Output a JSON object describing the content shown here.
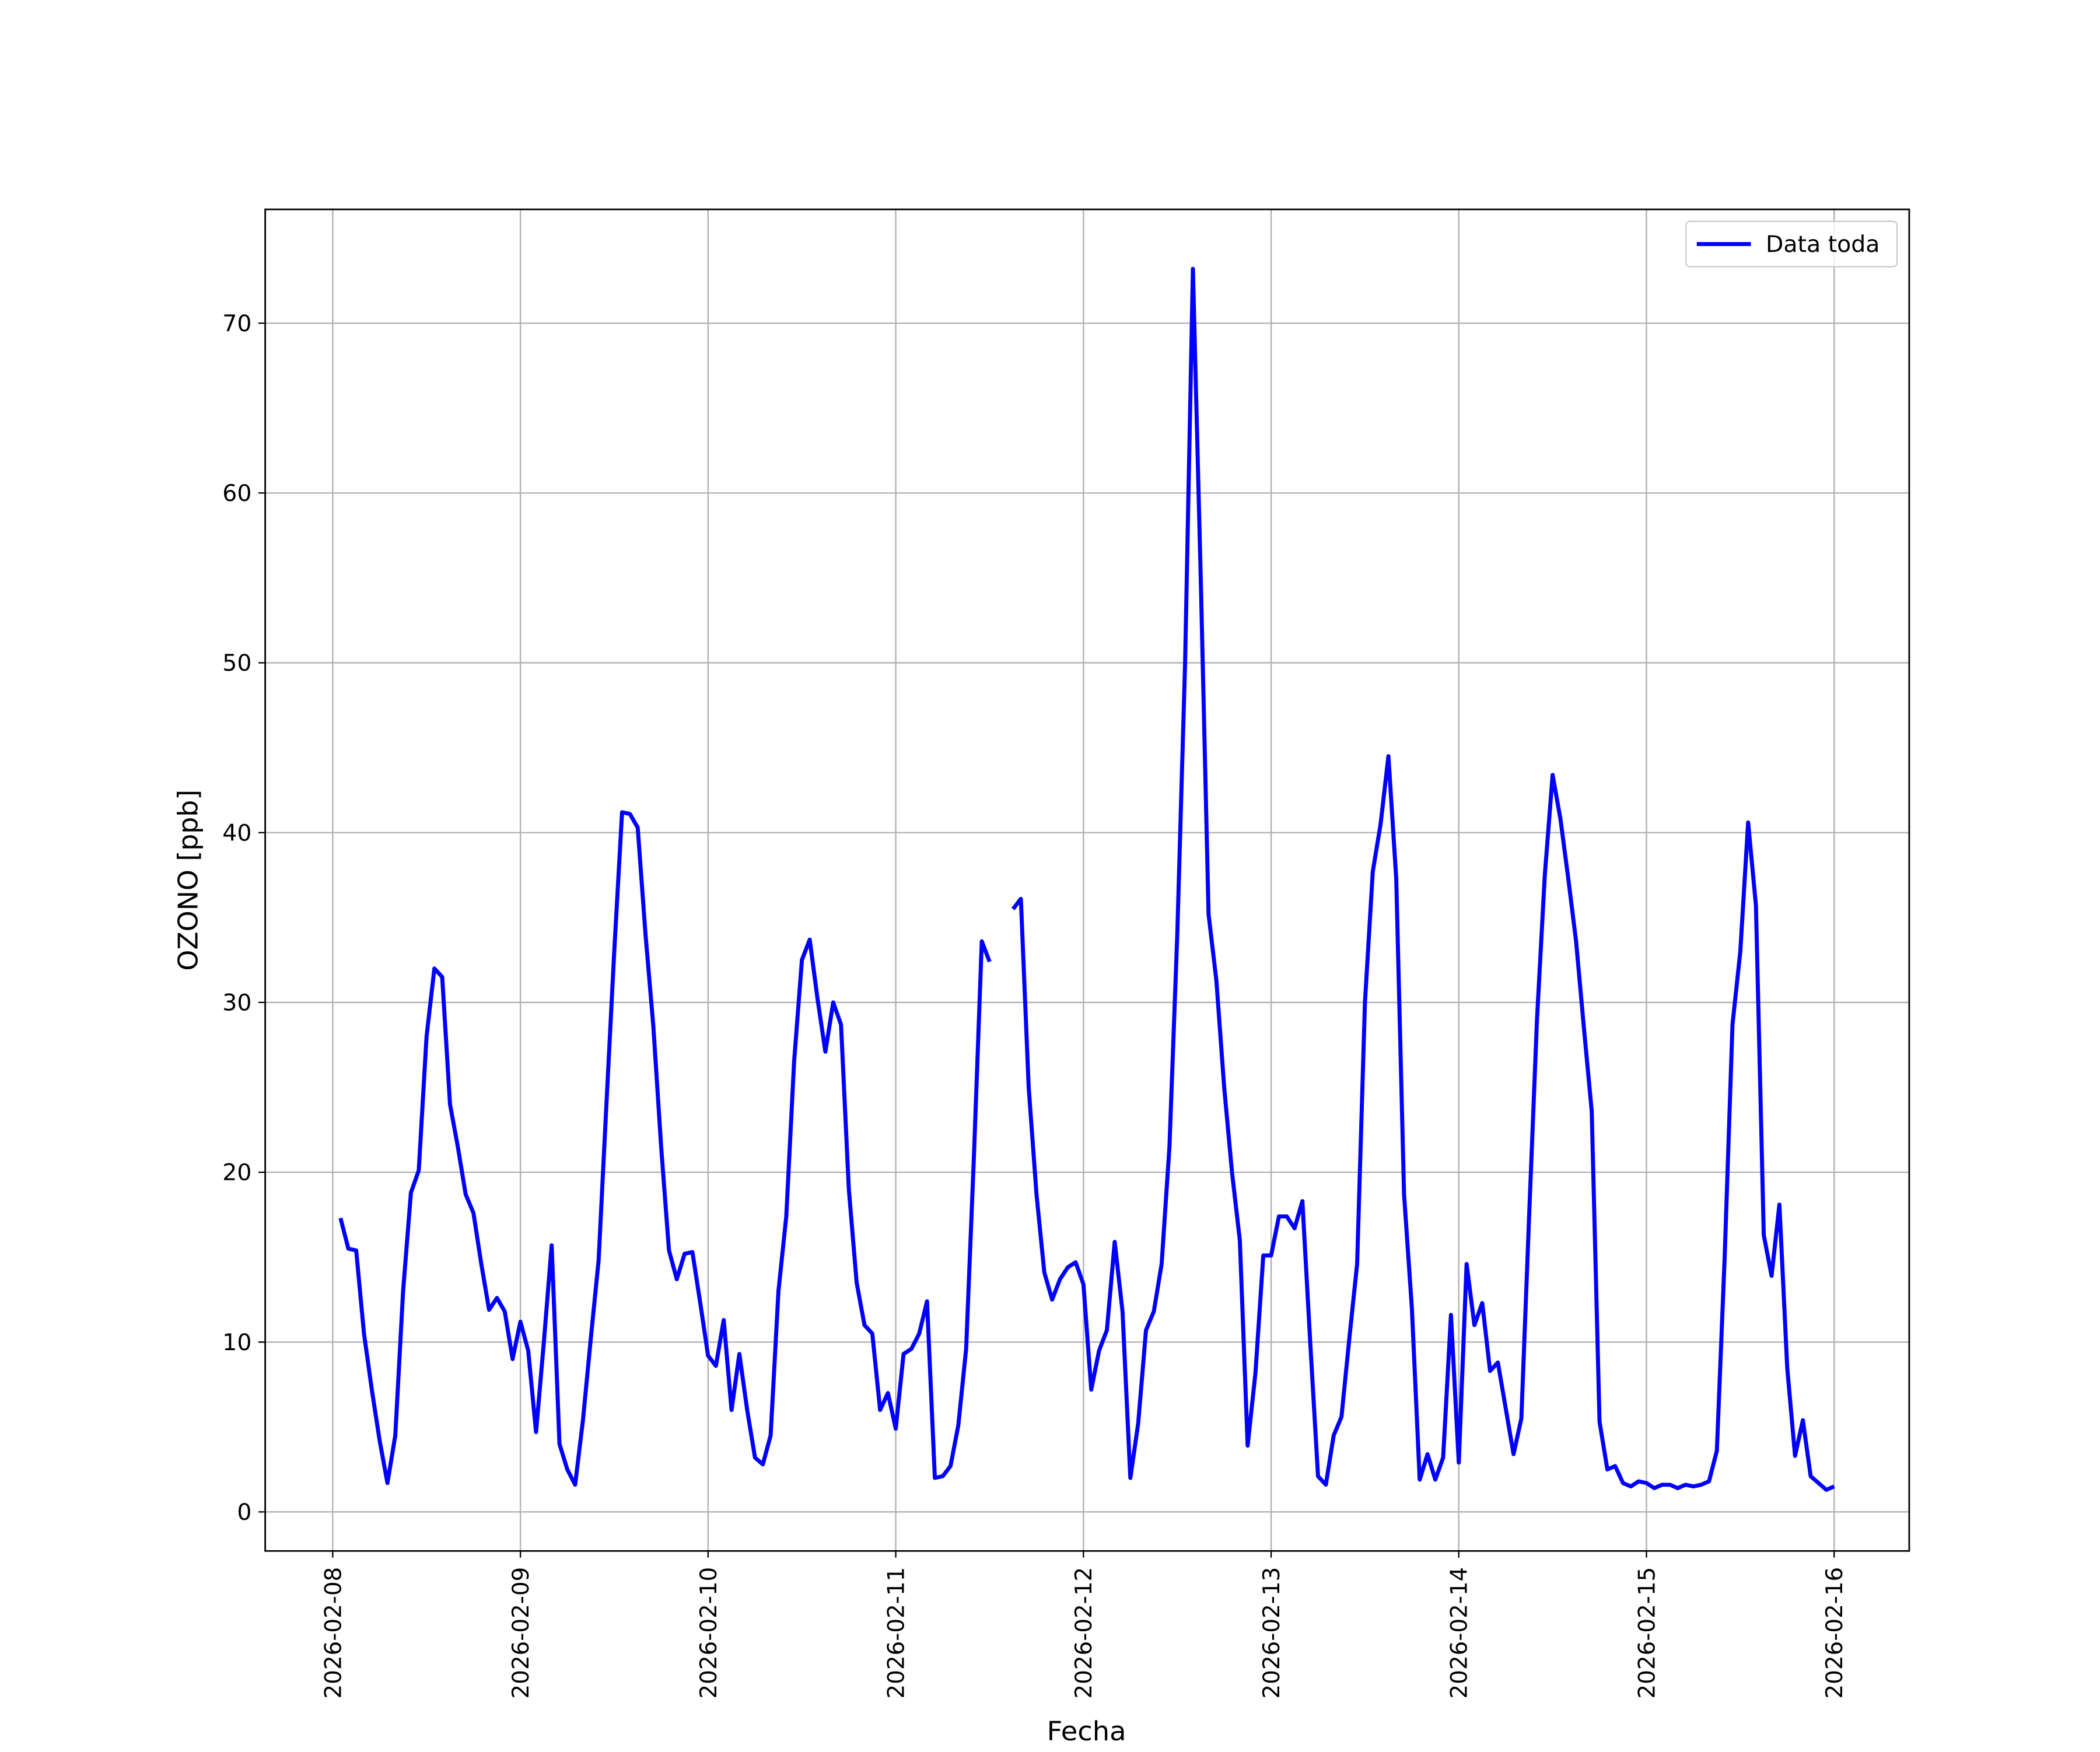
{
  "chart_data": {
    "type": "line",
    "xlabel": "Fecha",
    "ylabel": "OZONO [ppb]",
    "x": [
      "2026-02-08 01:00",
      "2026-02-08 02:00",
      "2026-02-08 03:00",
      "2026-02-08 04:00",
      "2026-02-08 05:00",
      "2026-02-08 06:00",
      "2026-02-08 07:00",
      "2026-02-08 08:00",
      "2026-02-08 09:00",
      "2026-02-08 10:00",
      "2026-02-08 11:00",
      "2026-02-08 12:00",
      "2026-02-08 13:00",
      "2026-02-08 14:00",
      "2026-02-08 15:00",
      "2026-02-08 16:00",
      "2026-02-08 17:00",
      "2026-02-08 18:00",
      "2026-02-08 19:00",
      "2026-02-08 20:00",
      "2026-02-08 21:00",
      "2026-02-08 22:00",
      "2026-02-08 23:00",
      "2026-02-09 00:00",
      "2026-02-09 01:00",
      "2026-02-09 02:00",
      "2026-02-09 03:00",
      "2026-02-09 04:00",
      "2026-02-09 05:00",
      "2026-02-09 06:00",
      "2026-02-09 07:00",
      "2026-02-09 08:00",
      "2026-02-09 09:00",
      "2026-02-09 10:00",
      "2026-02-09 11:00",
      "2026-02-09 12:00",
      "2026-02-09 13:00",
      "2026-02-09 14:00",
      "2026-02-09 15:00",
      "2026-02-09 16:00",
      "2026-02-09 17:00",
      "2026-02-09 18:00",
      "2026-02-09 19:00",
      "2026-02-09 20:00",
      "2026-02-09 21:00",
      "2026-02-09 22:00",
      "2026-02-09 23:00",
      "2026-02-10 00:00",
      "2026-02-10 01:00",
      "2026-02-10 02:00",
      "2026-02-10 03:00",
      "2026-02-10 04:00",
      "2026-02-10 05:00",
      "2026-02-10 06:00",
      "2026-02-10 07:00",
      "2026-02-10 08:00",
      "2026-02-10 09:00",
      "2026-02-10 10:00",
      "2026-02-10 11:00",
      "2026-02-10 12:00",
      "2026-02-10 13:00",
      "2026-02-10 14:00",
      "2026-02-10 15:00",
      "2026-02-10 16:00",
      "2026-02-10 17:00",
      "2026-02-10 18:00",
      "2026-02-10 19:00",
      "2026-02-10 20:00",
      "2026-02-10 21:00",
      "2026-02-10 22:00",
      "2026-02-10 23:00",
      "2026-02-11 00:00",
      "2026-02-11 01:00",
      "2026-02-11 02:00",
      "2026-02-11 03:00",
      "2026-02-11 04:00",
      "2026-02-11 05:00",
      "2026-02-11 06:00",
      "2026-02-11 07:00",
      "2026-02-11 08:00",
      "2026-02-11 09:00",
      "2026-02-11 10:00",
      "2026-02-11 11:00",
      "2026-02-11 12:00",
      "2026-02-11 13:00",
      "2026-02-11 14:00",
      "2026-02-11 15:00",
      "2026-02-11 16:00",
      "2026-02-11 17:00",
      "2026-02-11 18:00",
      "2026-02-11 19:00",
      "2026-02-11 20:00",
      "2026-02-11 21:00",
      "2026-02-11 22:00",
      "2026-02-11 23:00",
      "2026-02-12 00:00",
      "2026-02-12 01:00",
      "2026-02-12 02:00",
      "2026-02-12 03:00",
      "2026-02-12 04:00",
      "2026-02-12 05:00",
      "2026-02-12 06:00",
      "2026-02-12 07:00",
      "2026-02-12 08:00",
      "2026-02-12 09:00",
      "2026-02-12 10:00",
      "2026-02-12 11:00",
      "2026-02-12 12:00",
      "2026-02-12 13:00",
      "2026-02-12 14:00",
      "2026-02-12 15:00",
      "2026-02-12 16:00",
      "2026-02-12 17:00",
      "2026-02-12 18:00",
      "2026-02-12 19:00",
      "2026-02-12 20:00",
      "2026-02-12 21:00",
      "2026-02-12 22:00",
      "2026-02-12 23:00",
      "2026-02-13 00:00",
      "2026-02-13 01:00",
      "2026-02-13 02:00",
      "2026-02-13 03:00",
      "2026-02-13 04:00",
      "2026-02-13 05:00",
      "2026-02-13 06:00",
      "2026-02-13 07:00",
      "2026-02-13 08:00",
      "2026-02-13 09:00",
      "2026-02-13 10:00",
      "2026-02-13 11:00",
      "2026-02-13 12:00",
      "2026-02-13 13:00",
      "2026-02-13 14:00",
      "2026-02-13 15:00",
      "2026-02-13 16:00",
      "2026-02-13 17:00",
      "2026-02-13 18:00",
      "2026-02-13 19:00",
      "2026-02-13 20:00",
      "2026-02-13 21:00",
      "2026-02-13 22:00",
      "2026-02-13 23:00",
      "2026-02-14 00:00",
      "2026-02-14 01:00",
      "2026-02-14 02:00",
      "2026-02-14 03:00",
      "2026-02-14 04:00",
      "2026-02-14 05:00",
      "2026-02-14 06:00",
      "2026-02-14 07:00",
      "2026-02-14 08:00",
      "2026-02-14 09:00",
      "2026-02-14 10:00",
      "2026-02-14 11:00",
      "2026-02-14 12:00",
      "2026-02-14 13:00",
      "2026-02-14 14:00",
      "2026-02-14 15:00",
      "2026-02-14 16:00",
      "2026-02-14 17:00",
      "2026-02-14 18:00",
      "2026-02-14 19:00",
      "2026-02-14 20:00",
      "2026-02-14 21:00",
      "2026-02-14 22:00",
      "2026-02-14 23:00",
      "2026-02-15 00:00",
      "2026-02-15 01:00",
      "2026-02-15 02:00",
      "2026-02-15 03:00",
      "2026-02-15 04:00",
      "2026-02-15 05:00",
      "2026-02-15 06:00",
      "2026-02-15 07:00",
      "2026-02-15 08:00",
      "2026-02-15 09:00",
      "2026-02-15 10:00",
      "2026-02-15 11:00",
      "2026-02-15 12:00",
      "2026-02-15 13:00",
      "2026-02-15 14:00",
      "2026-02-15 15:00",
      "2026-02-15 16:00",
      "2026-02-15 17:00",
      "2026-02-15 18:00",
      "2026-02-15 19:00",
      "2026-02-15 20:00",
      "2026-02-15 21:00",
      "2026-02-15 22:00",
      "2026-02-15 23:00",
      "2026-02-16 00:00"
    ],
    "series": [
      {
        "name": "Data toda",
        "color": "#0000ff",
        "values": [
          17.3,
          15.5,
          15.4,
          10.5,
          7.2,
          4.2,
          1.7,
          4.5,
          13,
          18.8,
          20.1,
          28,
          32,
          31.5,
          24,
          21.5,
          18.7,
          17.6,
          14.6,
          11.9,
          12.6,
          11.8,
          9,
          11.2,
          9.5,
          4.7,
          10,
          15.7,
          4,
          2.5,
          1.6,
          5.4,
          10.2,
          14.8,
          24,
          33,
          41.2,
          41.1,
          40.3,
          34,
          28.6,
          21.5,
          15.4,
          13.7,
          15.2,
          15.3,
          12.3,
          9.2,
          8.6,
          11.3,
          6,
          9.3,
          6,
          3.2,
          2.8,
          4.5,
          13,
          17.4,
          26.5,
          32.5,
          33.7,
          30.2,
          27.1,
          30,
          28.7,
          19,
          13.5,
          11,
          10.5,
          6,
          7,
          4.9,
          9.3,
          9.6,
          10.5,
          12.4,
          2,
          2.1,
          2.7,
          5.1,
          9.6,
          21,
          33.6,
          32.4,
          null,
          null,
          35.5,
          36.1,
          25,
          18.7,
          14.1,
          12.5,
          13.7,
          14.4,
          14.7,
          13.4,
          7.2,
          9.5,
          10.7,
          15.9,
          11.8,
          2,
          5.2,
          10.7,
          11.8,
          14.6,
          21.5,
          34,
          50,
          73.2,
          55,
          35.2,
          31.3,
          25,
          20,
          16,
          3.9,
          8.2,
          15.1,
          15.1,
          17.4,
          17.4,
          16.7,
          18.3,
          10,
          2.1,
          1.6,
          4.5,
          5.6,
          10.2,
          14.6,
          30,
          37.7,
          40.5,
          44.5,
          37.3,
          18.7,
          12,
          1.9,
          3.4,
          1.9,
          3.2,
          11.6,
          2.9,
          14.6,
          11,
          12.3,
          8.3,
          8.8,
          6.1,
          3.4,
          5.5,
          17.5,
          29,
          37.5,
          43.4,
          40.8,
          37.3,
          33.6,
          28.5,
          23.6,
          5.3,
          2.5,
          2.7,
          1.7,
          1.5,
          1.8,
          1.7,
          1.4,
          1.6,
          1.6,
          1.4,
          1.6,
          1.5,
          1.6,
          1.8,
          3.6,
          15,
          28.7,
          33,
          40.6,
          35.7,
          16.3,
          13.9,
          18.1,
          8.5,
          3.3,
          5.4,
          2.1,
          1.7,
          1.3,
          1.5
        ]
      }
    ],
    "xlim": [
      "2026-02-07 15:22",
      "2026-02-16 09:36"
    ],
    "xticks": [
      "2026-02-08",
      "2026-02-09",
      "2026-02-10",
      "2026-02-11",
      "2026-02-12",
      "2026-02-13",
      "2026-02-14",
      "2026-02-15",
      "2026-02-16"
    ],
    "ylim": [
      -2.3,
      76.7
    ],
    "yticks": [
      0,
      10,
      20,
      30,
      40,
      50,
      60,
      70
    ],
    "grid": true,
    "legend": "upper right"
  }
}
